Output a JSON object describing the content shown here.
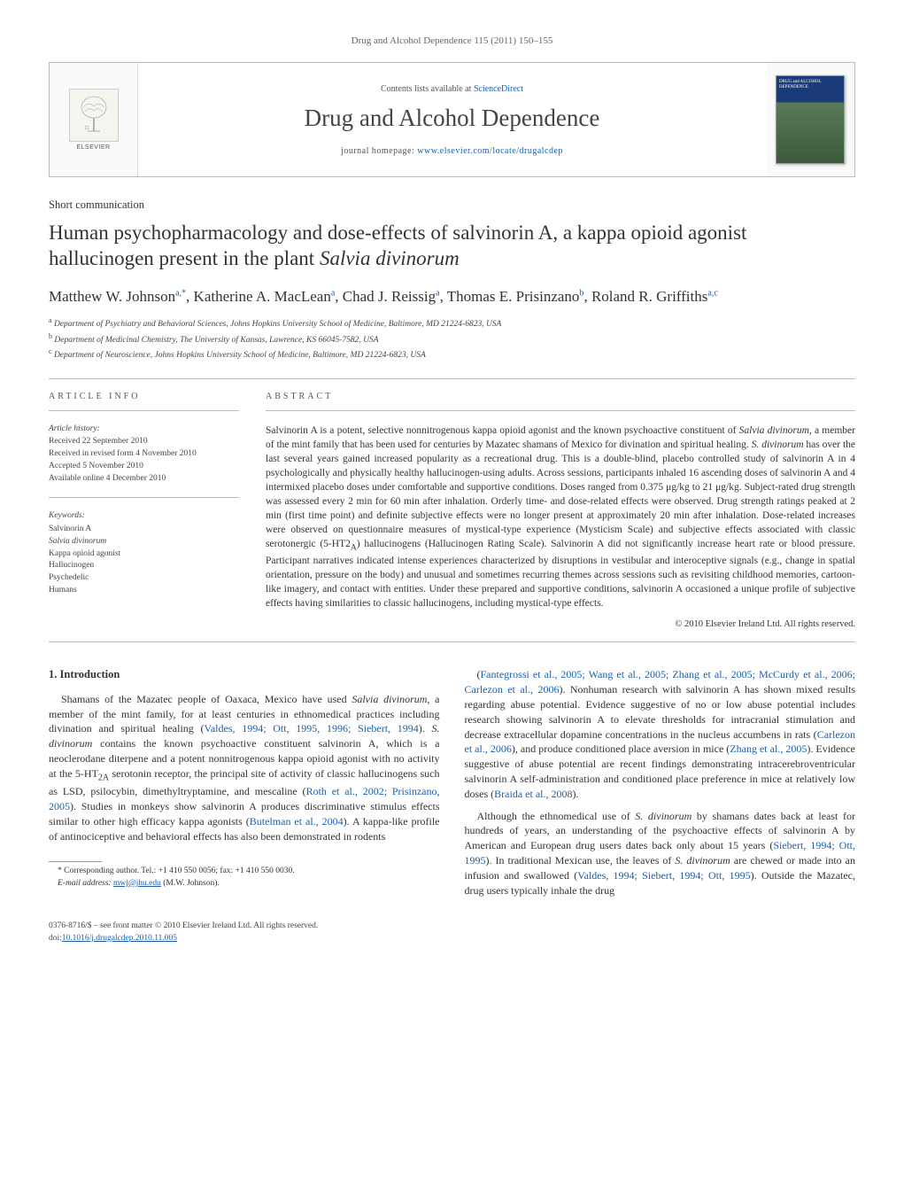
{
  "runningHead": "Drug and Alcohol Dependence 115 (2011) 150–155",
  "masthead": {
    "contentsPrefix": "Contents lists available at ",
    "contentsLink": "ScienceDirect",
    "journalName": "Drug and Alcohol Dependence",
    "homepagePrefix": "journal homepage: ",
    "homepageLink": "www.elsevier.com/locate/drugalcdep",
    "publisherLabel": "ELSEVIER",
    "coverTitle": "DRUG and ALCOHOL DEPENDENCE"
  },
  "articleType": "Short communication",
  "title": {
    "pre": "Human psychopharmacology and dose-effects of salvinorin A, a kappa opioid agonist hallucinogen present in the plant ",
    "italic": "Salvia divinorum"
  },
  "authorsHtml": "Matthew W. Johnson<sup>a,*</sup>, Katherine A. MacLean<sup>a</sup>, Chad J. Reissig<sup>a</sup>, Thomas E. Prisinzano<sup>b</sup>, Roland R. Griffiths<sup>a,c</sup>",
  "affiliations": [
    {
      "sup": "a",
      "text": "Department of Psychiatry and Behavioral Sciences, Johns Hopkins University School of Medicine, Baltimore, MD 21224-6823, USA"
    },
    {
      "sup": "b",
      "text": "Department of Medicinal Chemistry, The University of Kansas, Lawrence, KS 66045-7582, USA"
    },
    {
      "sup": "c",
      "text": "Department of Neuroscience, Johns Hopkins University School of Medicine, Baltimore, MD 21224-6823, USA"
    }
  ],
  "articleInfo": {
    "label": "article info",
    "historyTitle": "Article history:",
    "history": [
      "Received 22 September 2010",
      "Received in revised form 4 November 2010",
      "Accepted 5 November 2010",
      "Available online 4 December 2010"
    ],
    "keywordsTitle": "Keywords:",
    "keywords": [
      "Salvinorin A",
      "Salvia divinorum",
      "Kappa opioid agonist",
      "Hallucinogen",
      "Psychedelic",
      "Humans"
    ]
  },
  "abstract": {
    "label": "abstract",
    "text": "Salvinorin A is a potent, selective nonnitrogenous kappa opioid agonist and the known psychoactive constituent of <em>Salvia divinorum</em>, a member of the mint family that has been used for centuries by Mazatec shamans of Mexico for divination and spiritual healing. <em>S. divinorum</em> has over the last several years gained increased popularity as a recreational drug. This is a double-blind, placebo controlled study of salvinorin A in 4 psychologically and physically healthy hallucinogen-using adults. Across sessions, participants inhaled 16 ascending doses of salvinorin A and 4 intermixed placebo doses under comfortable and supportive conditions. Doses ranged from 0.375 μg/kg to 21 μg/kg. Subject-rated drug strength was assessed every 2 min for 60 min after inhalation. Orderly time- and dose-related effects were observed. Drug strength ratings peaked at 2 min (first time point) and definite subjective effects were no longer present at approximately 20 min after inhalation. Dose-related increases were observed on questionnaire measures of mystical-type experience (Mysticism Scale) and subjective effects associated with classic serotonergic (5-HT2<sub>A</sub>) hallucinogens (Hallucinogen Rating Scale). Salvinorin A did not significantly increase heart rate or blood pressure. Participant narratives indicated intense experiences characterized by disruptions in vestibular and interoceptive signals (e.g., change in spatial orientation, pressure on the body) and unusual and sometimes recurring themes across sessions such as revisiting childhood memories, cartoon-like imagery, and contact with entities. Under these prepared and supportive conditions, salvinorin A occasioned a unique profile of subjective effects having similarities to classic hallucinogens, including mystical-type effects.",
    "copyright": "© 2010 Elsevier Ireland Ltd. All rights reserved."
  },
  "bodyLeft": {
    "heading": "1. Introduction",
    "p1": "Shamans of the Mazatec people of Oaxaca, Mexico have used <em>Salvia divinorum</em>, a member of the mint family, for at least centuries in ethnomedical practices including divination and spiritual healing (<span class=\"cite\">Valdes, 1994; Ott, 1995, 1996; Siebert, 1994</span>). <em>S. divinorum</em> contains the known psychoactive constituent salvinorin A, which is a neoclerodane diterpene and a potent nonnitrogenous kappa opioid agonist with no activity at the 5-HT<sub>2A</sub> serotonin receptor, the principal site of activity of classic hallucinogens such as LSD, psilocybin, dimethyltryptamine, and mescaline (<span class=\"cite\">Roth et al., 2002; Prisinzano, 2005</span>). Studies in monkeys show salvinorin A produces discriminative stimulus effects similar to other high efficacy kappa agonists (<span class=\"cite\">Butelman et al., 2004</span>). A kappa-like profile of antinociceptive and behavioral effects has also been demonstrated in rodents"
  },
  "bodyRight": {
    "p1": "(<span class=\"cite\">Fantegrossi et al., 2005; Wang et al., 2005; Zhang et al., 2005; McCurdy et al., 2006; Carlezon et al., 2006</span>). Nonhuman research with salvinorin A has shown mixed results regarding abuse potential. Evidence suggestive of no or low abuse potential includes research showing salvinorin A to elevate thresholds for intracranial stimulation and decrease extracellular dopamine concentrations in the nucleus accumbens in rats (<span class=\"cite\">Carlezon et al., 2006</span>), and produce conditioned place aversion in mice (<span class=\"cite\">Zhang et al., 2005</span>). Evidence suggestive of abuse potential are recent findings demonstrating intracerebroventricular salvinorin A self-administration and conditioned place preference in mice at relatively low doses (<span class=\"cite\">Braida et al., 2008</span>).",
    "p2": "Although the ethnomedical use of <em>S. divinorum</em> by shamans dates back at least for hundreds of years, an understanding of the psychoactive effects of salvinorin A by American and European drug users dates back only about 15 years (<span class=\"cite\">Siebert, 1994; Ott, 1995</span>). In traditional Mexican use, the leaves of <em>S. divinorum</em> are chewed or made into an infusion and swallowed (<span class=\"cite\">Valdes, 1994; Siebert, 1994; Ott, 1995</span>). Outside the Mazatec, drug users typically inhale the drug"
  },
  "footnote": {
    "corrPrefix": "* Corresponding author. Tel.: +1 410 550 0056; fax: +1 410 550 0030.",
    "emailLabel": "E-mail address: ",
    "email": "mwj@jhu.edu",
    "emailSuffix": " (M.W. Johnson)."
  },
  "footer": {
    "line1": "0376-8716/$ – see front matter © 2010 Elsevier Ireland Ltd. All rights reserved.",
    "doiPrefix": "doi:",
    "doi": "10.1016/j.drugalcdep.2010.11.005"
  },
  "styling": {
    "pageWidth": 1021,
    "pageHeight": 1351,
    "bodyFont": "Georgia, 'Times New Roman', serif",
    "linkColor": "#1b5faa",
    "textColor": "#333333",
    "mutedColor": "#666666",
    "ruleColor": "#bbbbbb",
    "mastheadBorder": "#bbbbbb",
    "coverGradientTop": "#1b3a7a",
    "coverGradientBottom": "#3a5a3a",
    "titleFontSize": 23,
    "journalNameFontSize": 27,
    "authorsFontSize": 17,
    "bodyFontSize": 12,
    "abstractFontSize": 11.5,
    "infoFontSize": 9.5
  }
}
